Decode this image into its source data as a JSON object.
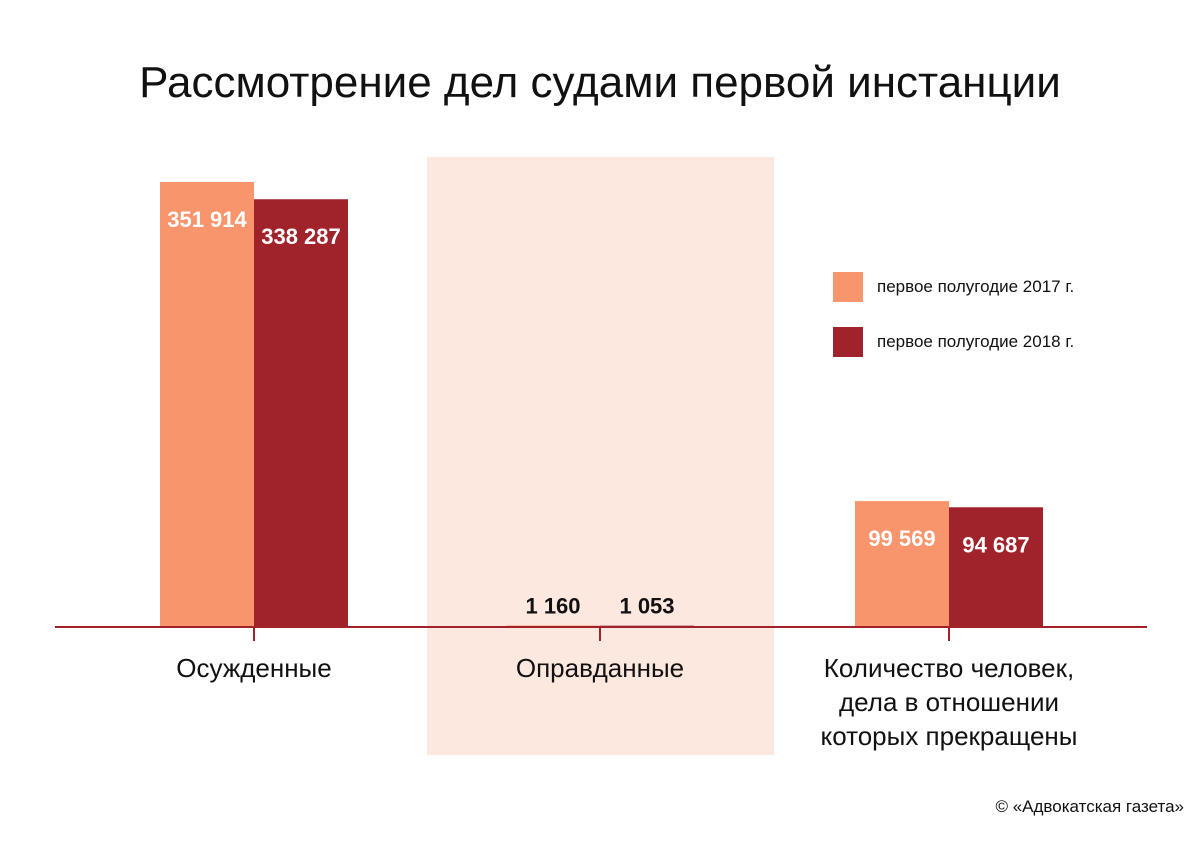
{
  "chart_data": {
    "type": "bar",
    "title": "Рассмотрение дел судами первой инстанции",
    "categories": [
      "Осужденные",
      "Оправданные",
      "Количество человек, дела в отношении которых прекращены"
    ],
    "category_lines": [
      [
        "Осужденные"
      ],
      [
        "Оправданные"
      ],
      [
        "Количество человек,",
        "дела в отношении",
        "которых прекращены"
      ]
    ],
    "series": [
      {
        "name": "первое полугодие 2017 г.",
        "color": "#f9956c",
        "values": [
          351914,
          1160,
          99569
        ],
        "labels": [
          "351 914",
          "1 160",
          "99 569"
        ]
      },
      {
        "name": "первое полугодие 2018 г.",
        "color": "#a0232b",
        "values": [
          338287,
          1053,
          94687
        ],
        "labels": [
          "338 287",
          "1 053",
          "94 687"
        ]
      }
    ],
    "highlight_category": "Оправданные",
    "highlight_color": "#fde8df",
    "axis_color": "#a0232b",
    "legend": "right",
    "grid": false
  },
  "credit": "© «Адвокатская газета»"
}
